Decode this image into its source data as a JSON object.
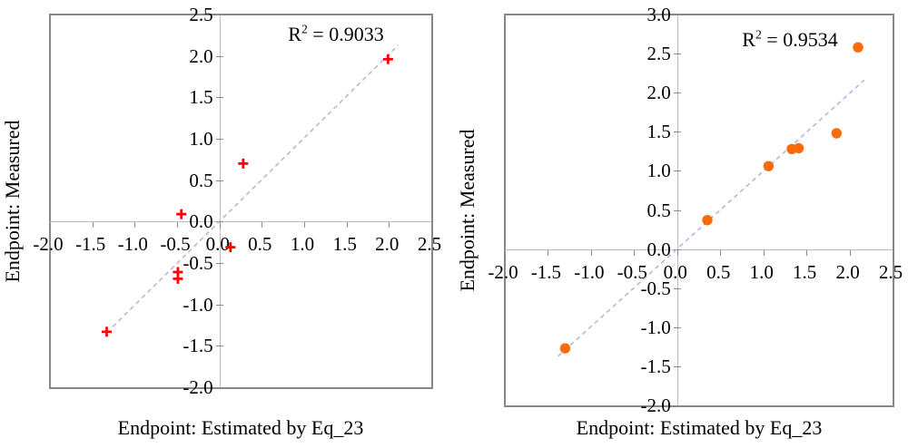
{
  "figure": {
    "background": "#ffffff"
  },
  "chart_data": [
    {
      "type": "scatter",
      "title": "",
      "r2": {
        "base": "R",
        "exponent": "2",
        "rest": " = 0.9033"
      },
      "xlabel": "Endpoint: Estimated by Eq_23",
      "ylabel": "Endpoint: Measured",
      "xlim": [
        -2.0,
        2.5
      ],
      "ylim": [
        -2.0,
        2.5
      ],
      "x_ticks": [
        "-2.0",
        "-1.5",
        "-1.0",
        "-0.5",
        "0.0",
        "0.5",
        "1.0",
        "1.5",
        "2.0",
        "2.5"
      ],
      "y_ticks": [
        "2.5",
        "2.0",
        "1.5",
        "1.0",
        "0.5",
        "0.0",
        "-0.5",
        "-1.0",
        "-1.5",
        "-2.0"
      ],
      "grid": false,
      "legend": null,
      "axis_cross": [
        0,
        0
      ],
      "marker": {
        "shape": "plus",
        "color": "#fe0000",
        "size": 11
      },
      "points": [
        {
          "x": -1.33,
          "y": -1.33
        },
        {
          "x": -0.49,
          "y": -0.69
        },
        {
          "x": -0.49,
          "y": -0.61
        },
        {
          "x": -0.45,
          "y": 0.09
        },
        {
          "x": 0.13,
          "y": -0.31
        },
        {
          "x": 0.28,
          "y": 0.7
        },
        {
          "x": 1.99,
          "y": 1.96
        }
      ],
      "trendline": {
        "style": "dashed",
        "color": "#aeaedd",
        "x1": -1.26,
        "y1": -1.27,
        "x2": 2.11,
        "y2": 2.13
      },
      "axes": {
        "frame_color": "#878787",
        "axis_line_color": "#bcbcbc",
        "tick_color": "#8a8a8a"
      }
    },
    {
      "type": "scatter",
      "title": "",
      "r2": {
        "base": "R",
        "exponent": "2",
        "rest": " = 0.9534"
      },
      "xlabel": "Endpoint: Estimated by Eq_23",
      "ylabel": "Endpoint: Measured",
      "xlim": [
        -2.0,
        2.5
      ],
      "ylim": [
        -2.0,
        3.0
      ],
      "x_ticks": [
        "-2.0",
        "-1.5",
        "-1.0",
        "-0.5",
        "0.0",
        "0.5",
        "1.0",
        "1.5",
        "2.0",
        "2.5"
      ],
      "y_ticks": [
        "3.0",
        "2.5",
        "2.0",
        "1.5",
        "1.0",
        "0.5",
        "0.0",
        "-0.5",
        "-1.0",
        "-1.5",
        "-2.0"
      ],
      "grid": false,
      "legend": null,
      "axis_cross": [
        0,
        0
      ],
      "marker": {
        "shape": "circle",
        "color": "#fb6a0b",
        "size": 11
      },
      "points": [
        {
          "x": -1.3,
          "y": -1.27
        },
        {
          "x": 0.35,
          "y": 0.37
        },
        {
          "x": 1.06,
          "y": 1.06
        },
        {
          "x": 1.33,
          "y": 1.28
        },
        {
          "x": 1.41,
          "y": 1.29
        },
        {
          "x": 1.85,
          "y": 1.48
        },
        {
          "x": 2.1,
          "y": 2.58
        }
      ],
      "trendline": {
        "style": "dashed",
        "color": "#aeaedd",
        "x1": -1.38,
        "y1": -1.37,
        "x2": 2.17,
        "y2": 2.16
      },
      "axes": {
        "frame_color": "#878787",
        "axis_line_color": "#bcbcbc",
        "tick_color": "#8a8a8a"
      }
    }
  ]
}
